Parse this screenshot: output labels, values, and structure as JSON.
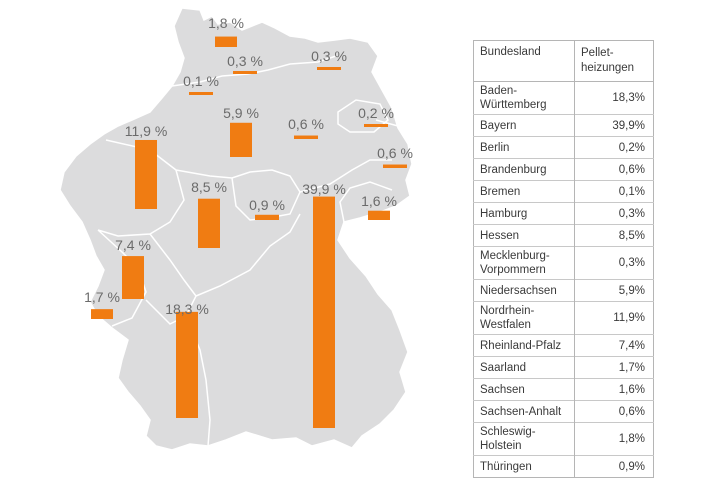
{
  "chart_data": {
    "type": "bar",
    "unit": "%",
    "bars": [
      {
        "label": "1,8 %",
        "value": 1.8
      },
      {
        "label": "0,3 %",
        "value": 0.3
      },
      {
        "label": "0,3 %",
        "value": 0.3
      },
      {
        "label": "0,1 %",
        "value": 0.1
      },
      {
        "label": "0,2 %",
        "value": 0.2
      },
      {
        "label": "0,6 %",
        "value": 0.6
      },
      {
        "label": "5,9 %",
        "value": 5.9
      },
      {
        "label": "0,6 %",
        "value": 0.6
      },
      {
        "label": "11,9 %",
        "value": 11.9
      },
      {
        "label": "8,5 %",
        "value": 8.5
      },
      {
        "label": "0,9 %",
        "value": 0.9
      },
      {
        "label": "39,9 %",
        "value": 39.9
      },
      {
        "label": "1,6 %",
        "value": 1.6
      },
      {
        "label": "7,4 %",
        "value": 7.4
      },
      {
        "label": "1,7 %",
        "value": 1.7
      },
      {
        "label": "18,3 %",
        "value": 18.3
      }
    ]
  },
  "colors": {
    "bar": "#f07c12",
    "map_fill": "#dcdcdd",
    "map_stroke": "#ffffff",
    "text": "#6b6b6b"
  },
  "table": {
    "header_state": "Bundesland",
    "header_value": "Pellet-\nheizungen",
    "rows": [
      {
        "state": "Baden-\nWürttemberg",
        "value": "18,3%"
      },
      {
        "state": "Bayern",
        "value": "39,9%"
      },
      {
        "state": "Berlin",
        "value": "0,2%"
      },
      {
        "state": "Brandenburg",
        "value": "0,6%"
      },
      {
        "state": "Bremen",
        "value": "0,1%"
      },
      {
        "state": "Hamburg",
        "value": "0,3%"
      },
      {
        "state": "Hessen",
        "value": "8,5%"
      },
      {
        "state": "Mecklenburg-\nVorpommern",
        "value": "0,3%"
      },
      {
        "state": "Niedersachsen",
        "value": "5,9%"
      },
      {
        "state": "Nordrhein-\nWestfalen",
        "value": "11,9%"
      },
      {
        "state": "Rheinland-Pfalz",
        "value": "7,4%"
      },
      {
        "state": "Saarland",
        "value": "1,7%"
      },
      {
        "state": "Sachsen",
        "value": "1,6%"
      },
      {
        "state": "Sachsen-Anhalt",
        "value": "0,6%"
      },
      {
        "state": "Schleswig-\nHolstein",
        "value": "1,8%"
      },
      {
        "state": "Thüringen",
        "value": "0,9%"
      }
    ]
  }
}
